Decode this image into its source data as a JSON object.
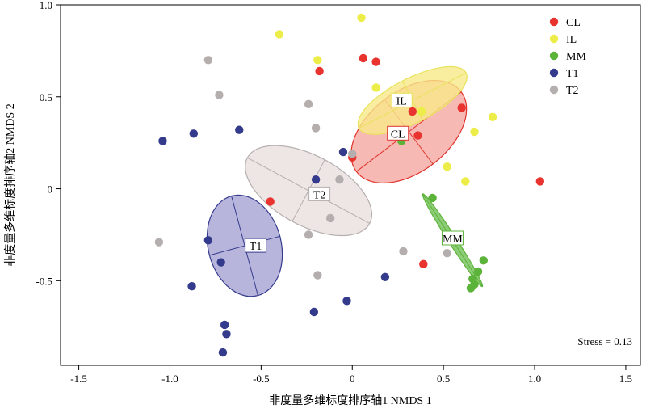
{
  "chart_data": {
    "type": "scatter",
    "title": "",
    "xlabel": "非度量多维标度排序轴1 NMDS 1",
    "ylabel": "非度量多维标度排序轴2 NMDS 2",
    "xlim": [
      -1.6,
      1.58
    ],
    "ylim": [
      -0.96,
      1.0
    ],
    "xticks": [
      -1.5,
      -1.0,
      -0.5,
      0,
      0.5,
      1.0,
      1.5
    ],
    "xtick_labels": [
      "-1.5",
      "-1.0",
      "-0.5",
      "0",
      "0.5",
      "1.0",
      "1.5"
    ],
    "yticks": [
      -0.5,
      0,
      0.5,
      1.0
    ],
    "ytick_labels": [
      "-0.5",
      "0",
      "0.5",
      "1.0"
    ],
    "annotation": "Stress = 0.13",
    "legend_position": "top-right",
    "legend": [
      {
        "name": "CL",
        "color": "#e8332e"
      },
      {
        "name": "IL",
        "color": "#eded4a"
      },
      {
        "name": "MM",
        "color": "#5cb33a"
      },
      {
        "name": "T1",
        "color": "#353b8c"
      },
      {
        "name": "T2",
        "color": "#b5aeae"
      }
    ],
    "series": [
      {
        "name": "CL",
        "color": "#e8332e",
        "points": [
          [
            0.06,
            0.71
          ],
          [
            0.13,
            0.69
          ],
          [
            -0.18,
            0.64
          ],
          [
            0.6,
            0.44
          ],
          [
            0.33,
            0.42
          ],
          [
            0.36,
            0.29
          ],
          [
            1.03,
            0.04
          ],
          [
            0.39,
            -0.41
          ],
          [
            -0.45,
            -0.07
          ],
          [
            0.0,
            0.17
          ]
        ],
        "ellipse": {
          "cx": 0.31,
          "cy": 0.31,
          "rx": 0.36,
          "ry": 0.22,
          "angle_deg": 37,
          "fill": "#f5a8a0",
          "stroke": "#e0332d",
          "label": "CL",
          "label_xy": [
            0.25,
            0.3
          ]
        }
      },
      {
        "name": "IL",
        "color": "#eded4a",
        "points": [
          [
            0.05,
            0.93
          ],
          [
            -0.4,
            0.84
          ],
          [
            -0.19,
            0.7
          ],
          [
            0.13,
            0.55
          ],
          [
            0.38,
            0.42
          ],
          [
            0.77,
            0.39
          ],
          [
            0.67,
            0.31
          ],
          [
            0.52,
            0.12
          ],
          [
            0.62,
            0.04
          ]
        ],
        "ellipse": {
          "cx": 0.33,
          "cy": 0.48,
          "rx": 0.33,
          "ry": 0.12,
          "angle_deg": 27,
          "fill": "#f7e988",
          "stroke": "#e8e45c",
          "label": "IL",
          "label_xy": [
            0.27,
            0.48
          ]
        }
      },
      {
        "name": "MM",
        "color": "#5cb33a",
        "points": [
          [
            0.27,
            0.26
          ],
          [
            0.44,
            -0.05
          ],
          [
            0.72,
            -0.39
          ],
          [
            0.69,
            -0.45
          ],
          [
            0.66,
            -0.49
          ],
          [
            0.67,
            -0.52
          ],
          [
            0.65,
            -0.54
          ]
        ],
        "ellipse": {
          "cx": 0.55,
          "cy": -0.28,
          "rx": 0.3,
          "ry": 0.022,
          "angle_deg": -57,
          "fill": "#72c055",
          "stroke": "#5cb33a",
          "label": "MM",
          "label_xy": [
            0.55,
            -0.27
          ]
        }
      },
      {
        "name": "T1",
        "color": "#353b8c",
        "points": [
          [
            -1.04,
            0.26
          ],
          [
            -0.87,
            0.3
          ],
          [
            -0.62,
            0.32
          ],
          [
            -0.05,
            0.2
          ],
          [
            -0.2,
            0.05
          ],
          [
            -0.79,
            -0.28
          ],
          [
            -0.72,
            -0.4
          ],
          [
            -0.88,
            -0.53
          ],
          [
            0.18,
            -0.48
          ],
          [
            -0.03,
            -0.61
          ],
          [
            -0.21,
            -0.67
          ],
          [
            -0.7,
            -0.74
          ],
          [
            -0.69,
            -0.79
          ],
          [
            -0.71,
            -0.89
          ]
        ],
        "ellipse": {
          "cx": -0.59,
          "cy": -0.31,
          "rx": 0.2,
          "ry": 0.28,
          "angle_deg": 15,
          "fill": "#a6a2d4",
          "stroke": "#353b8c",
          "label": "T1",
          "label_xy": [
            -0.53,
            -0.31
          ]
        }
      },
      {
        "name": "T2",
        "color": "#b5aeae",
        "points": [
          [
            -0.79,
            0.7
          ],
          [
            -0.73,
            0.51
          ],
          [
            -0.24,
            0.46
          ],
          [
            -0.2,
            0.33
          ],
          [
            0.0,
            0.19
          ],
          [
            -0.07,
            0.05
          ],
          [
            -0.12,
            -0.16
          ],
          [
            -0.24,
            -0.25
          ],
          [
            -0.19,
            -0.47
          ],
          [
            -1.06,
            -0.29
          ],
          [
            0.28,
            -0.34
          ],
          [
            0.52,
            -0.35
          ]
        ],
        "ellipse": {
          "cx": -0.24,
          "cy": -0.01,
          "rx": 0.38,
          "ry": 0.19,
          "angle_deg": -28,
          "fill": "#e8e0dd",
          "stroke": "#b5aeae",
          "label": "T2",
          "label_xy": [
            -0.18,
            -0.03
          ]
        }
      }
    ]
  }
}
